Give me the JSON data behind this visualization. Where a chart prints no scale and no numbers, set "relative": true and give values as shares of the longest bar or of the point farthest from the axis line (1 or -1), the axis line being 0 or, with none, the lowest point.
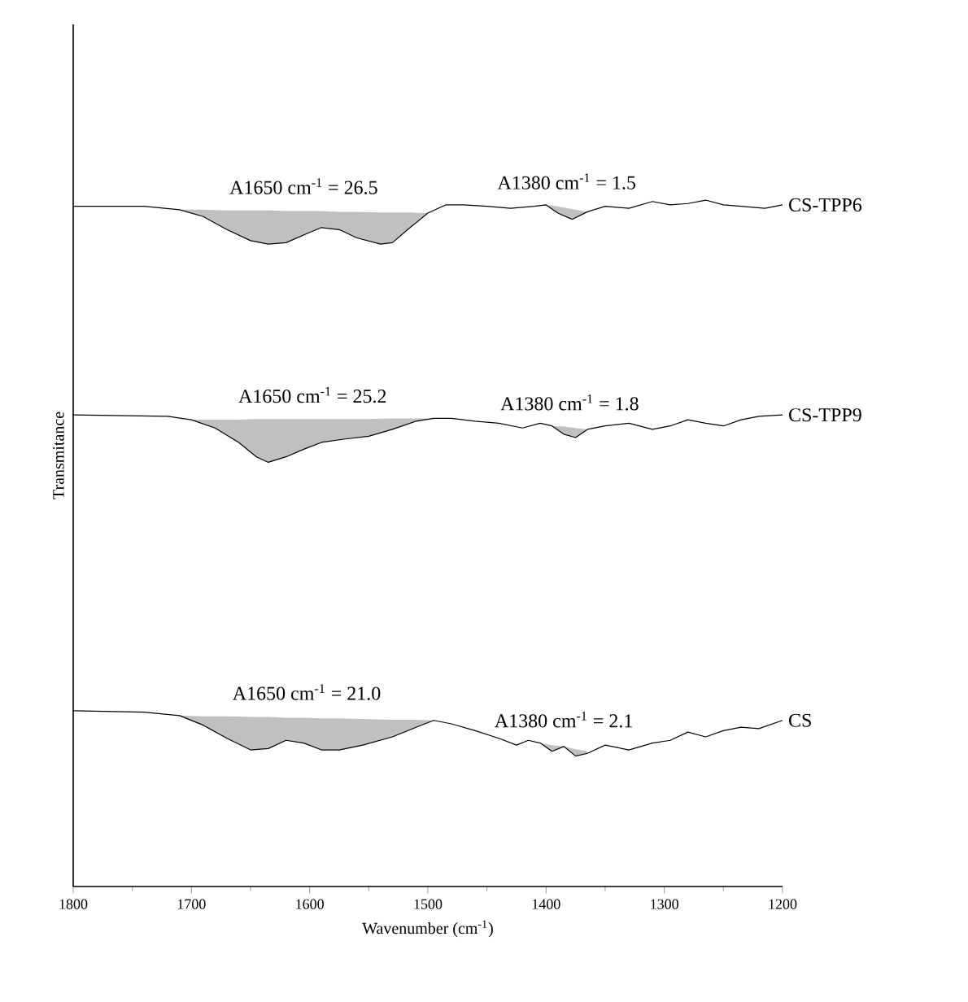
{
  "chart_data": {
    "type": "line",
    "relative": true,
    "xlabel": "Wavenumber (cm$^{-1}$)",
    "ylabel": "Transmitance",
    "xlim": [
      1800,
      1200
    ],
    "xticks": [
      1800,
      1700,
      1600,
      1500,
      1400,
      1300,
      1200
    ],
    "legend": false,
    "grid": false,
    "marker": "none",
    "line_style": "solid",
    "series": [
      {
        "name": "CS",
        "color": "#000000",
        "x": [
          1800,
          1740,
          1710,
          1690,
          1670,
          1650,
          1635,
          1620,
          1605,
          1590,
          1575,
          1555,
          1530,
          1510,
          1495,
          1480,
          1460,
          1440,
          1425,
          1415,
          1405,
          1395,
          1385,
          1375,
          1365,
          1350,
          1330,
          1310,
          1295,
          1280,
          1265,
          1250,
          1235,
          1220,
          1200
        ],
        "values": [
          0.256,
          0.254,
          0.249,
          0.235,
          0.216,
          0.199,
          0.201,
          0.213,
          0.209,
          0.199,
          0.199,
          0.206,
          0.218,
          0.232,
          0.242,
          0.237,
          0.227,
          0.216,
          0.206,
          0.213,
          0.209,
          0.197,
          0.204,
          0.19,
          0.194,
          0.206,
          0.199,
          0.209,
          0.213,
          0.225,
          0.218,
          0.227,
          0.232,
          0.23,
          0.242
        ],
        "upper": [
          null,
          null,
          0.249,
          0.248,
          0.248,
          0.247,
          0.247,
          0.246,
          0.246,
          0.245,
          0.245,
          0.244,
          0.243,
          0.243,
          0.242,
          null,
          null,
          null,
          null,
          null,
          0.209,
          0.206,
          0.204,
          0.2,
          0.197,
          null,
          null,
          null,
          null,
          null,
          null,
          null,
          null,
          null,
          null
        ],
        "lower": [
          null,
          null,
          0.249,
          0.235,
          0.216,
          0.199,
          0.201,
          0.213,
          0.209,
          0.199,
          0.199,
          0.206,
          0.218,
          0.232,
          0.242,
          null,
          null,
          null,
          null,
          null,
          0.209,
          0.197,
          0.204,
          0.19,
          0.194,
          null,
          null,
          null,
          null,
          null,
          null,
          null,
          null,
          null,
          null
        ]
      },
      {
        "name": "CS-TPP9",
        "color": "#000000",
        "x": [
          1800,
          1720,
          1700,
          1680,
          1660,
          1645,
          1635,
          1620,
          1605,
          1590,
          1570,
          1550,
          1530,
          1510,
          1495,
          1480,
          1460,
          1440,
          1420,
          1405,
          1395,
          1385,
          1375,
          1365,
          1350,
          1330,
          1310,
          1295,
          1280,
          1265,
          1250,
          1235,
          1220,
          1200
        ],
        "values": [
          0.687,
          0.685,
          0.68,
          0.668,
          0.647,
          0.626,
          0.618,
          0.626,
          0.637,
          0.647,
          0.652,
          0.656,
          0.666,
          0.678,
          0.682,
          0.682,
          0.678,
          0.675,
          0.668,
          0.675,
          0.671,
          0.659,
          0.654,
          0.666,
          0.671,
          0.675,
          0.666,
          0.671,
          0.68,
          0.675,
          0.671,
          0.68,
          0.685,
          0.687
        ],
        "upper": [
          null,
          null,
          0.68,
          0.68,
          0.68,
          0.681,
          0.681,
          0.681,
          0.681,
          0.681,
          0.681,
          0.681,
          0.682,
          0.682,
          0.682,
          null,
          null,
          null,
          null,
          null,
          0.671,
          0.67,
          0.668,
          0.666,
          null,
          null,
          null,
          null,
          null,
          null,
          null,
          null,
          null,
          null
        ],
        "lower": [
          null,
          null,
          0.68,
          0.668,
          0.647,
          0.626,
          0.618,
          0.626,
          0.637,
          0.647,
          0.652,
          0.656,
          0.666,
          0.678,
          0.682,
          null,
          null,
          null,
          null,
          null,
          0.671,
          0.659,
          0.654,
          0.666,
          null,
          null,
          null,
          null,
          null,
          null,
          null,
          null,
          null,
          null
        ]
      },
      {
        "name": "CS-TPP6",
        "color": "#000000",
        "x": [
          1800,
          1740,
          1710,
          1690,
          1670,
          1650,
          1635,
          1620,
          1600,
          1590,
          1575,
          1560,
          1540,
          1530,
          1515,
          1500,
          1485,
          1470,
          1450,
          1430,
          1410,
          1400,
          1390,
          1378,
          1365,
          1350,
          1330,
          1310,
          1295,
          1280,
          1265,
          1250,
          1235,
          1215,
          1200
        ],
        "values": [
          0.991,
          0.991,
          0.986,
          0.976,
          0.957,
          0.941,
          0.936,
          0.938,
          0.953,
          0.96,
          0.957,
          0.945,
          0.936,
          0.938,
          0.96,
          0.981,
          0.993,
          0.993,
          0.991,
          0.988,
          0.991,
          0.993,
          0.981,
          0.972,
          0.983,
          0.991,
          0.988,
          0.998,
          0.993,
          0.995,
          1.0,
          0.993,
          0.991,
          0.988,
          0.993
        ],
        "upper": [
          null,
          null,
          0.986,
          0.986,
          0.985,
          0.985,
          0.985,
          0.984,
          0.984,
          0.984,
          0.983,
          0.983,
          0.982,
          0.982,
          0.982,
          0.981,
          null,
          null,
          null,
          null,
          null,
          0.993,
          0.991,
          0.987,
          0.983,
          null,
          null,
          null,
          null,
          null,
          null,
          null,
          null,
          null,
          null
        ],
        "lower": [
          null,
          null,
          0.986,
          0.976,
          0.957,
          0.941,
          0.936,
          0.938,
          0.953,
          0.96,
          0.957,
          0.945,
          0.936,
          0.938,
          0.96,
          0.981,
          null,
          null,
          null,
          null,
          null,
          0.993,
          0.981,
          0.972,
          0.983,
          null,
          null,
          null,
          null,
          null,
          null,
          null,
          null,
          null,
          null
        ]
      }
    ],
    "annotations": [
      "A1650 cm$^{-1}$ = 21.0",
      "A1380 cm$^{-1}$ = 2.1",
      "A1650 cm$^{-1}$ = 25.2",
      "A1380 cm$^{-1}$ = 1.8",
      "A1650 cm$^{-1}$ = 26.5",
      "A1380 cm$^{-1}$ = 1.5"
    ]
  }
}
